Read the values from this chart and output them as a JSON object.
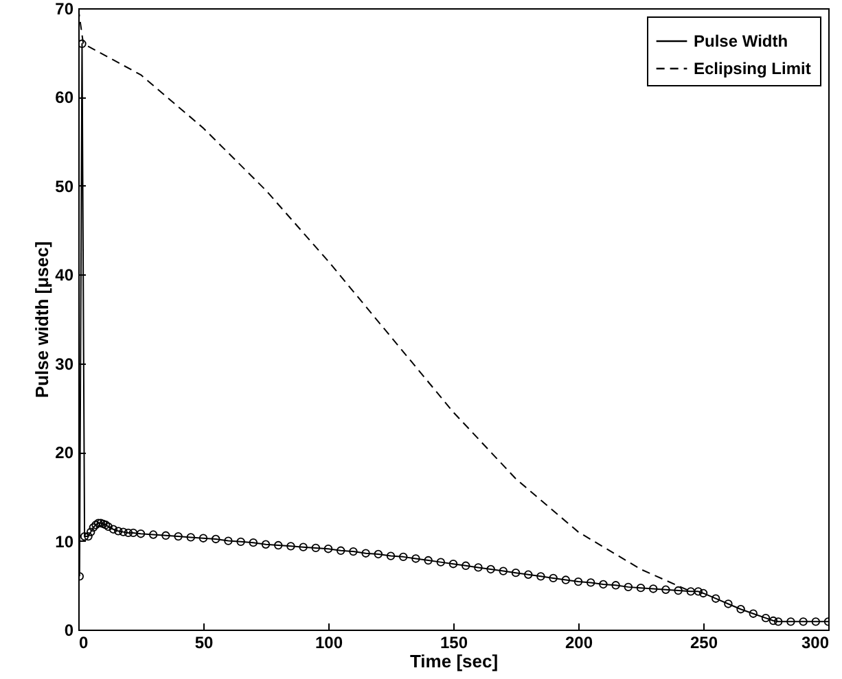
{
  "chart_data": {
    "type": "line",
    "xlabel": "Time [sec]",
    "ylabel": "Pulse width [μsec]",
    "xlim": [
      0,
      300
    ],
    "ylim": [
      0,
      70
    ],
    "xticks": [
      0,
      50,
      100,
      150,
      200,
      250,
      300
    ],
    "yticks": [
      0,
      10,
      20,
      30,
      40,
      50,
      60,
      70
    ],
    "grid": false,
    "legend": "top right",
    "series": [
      {
        "name": "Pulse Width",
        "color": "#000000",
        "marker": "circle",
        "line_style": "solid",
        "x": [
          0.5,
          1.5,
          2.5,
          4,
          5,
          6,
          7,
          8,
          9,
          10,
          11,
          12,
          14,
          16,
          18,
          20,
          22,
          25,
          30,
          35,
          40,
          45,
          50,
          55,
          60,
          65,
          70,
          75,
          80,
          85,
          90,
          95,
          100,
          105,
          110,
          115,
          120,
          125,
          130,
          135,
          140,
          145,
          150,
          155,
          160,
          165,
          170,
          175,
          180,
          185,
          190,
          195,
          200,
          205,
          210,
          215,
          220,
          225,
          230,
          235,
          240,
          245,
          248,
          250,
          255,
          260,
          265,
          270,
          275,
          278,
          280,
          285,
          290,
          295,
          300
        ],
        "values": [
          6,
          66,
          10.5,
          10.5,
          11,
          11.5,
          11.8,
          12,
          12,
          11.9,
          11.8,
          11.6,
          11.3,
          11.1,
          11,
          10.9,
          10.9,
          10.8,
          10.7,
          10.6,
          10.5,
          10.4,
          10.3,
          10.2,
          10.0,
          9.9,
          9.8,
          9.6,
          9.5,
          9.4,
          9.3,
          9.2,
          9.1,
          8.9,
          8.8,
          8.6,
          8.5,
          8.3,
          8.2,
          8.0,
          7.8,
          7.6,
          7.4,
          7.2,
          7.0,
          6.8,
          6.6,
          6.4,
          6.2,
          6.0,
          5.8,
          5.6,
          5.4,
          5.3,
          5.1,
          5.0,
          4.8,
          4.7,
          4.6,
          4.5,
          4.4,
          4.3,
          4.3,
          4.1,
          3.5,
          2.9,
          2.3,
          1.8,
          1.3,
          1.0,
          0.9,
          0.9,
          0.9,
          0.9,
          0.9
        ]
      },
      {
        "name": "Eclipsing Limit",
        "color": "#000000",
        "marker": "none",
        "line_style": "dashed",
        "x": [
          0,
          2,
          25,
          50,
          75,
          100,
          125,
          150,
          175,
          200,
          225,
          245
        ],
        "values": [
          70,
          66,
          62.5,
          56.5,
          49.5,
          41.5,
          33,
          24.5,
          17,
          11,
          6.8,
          4.3
        ]
      }
    ]
  }
}
